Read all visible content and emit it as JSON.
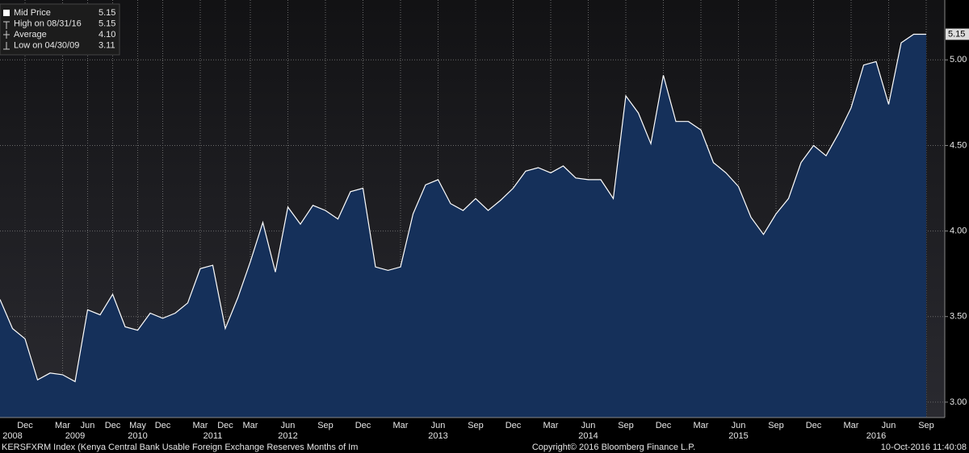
{
  "chart_data": {
    "type": "area",
    "series": [
      {
        "name": "Mid Price",
        "color": "#ffffff",
        "fill": "#15305a",
        "values": [
          3.6,
          3.43,
          3.37,
          3.13,
          3.17,
          3.16,
          3.12,
          3.54,
          3.51,
          3.63,
          3.44,
          3.42,
          3.52,
          3.49,
          3.52,
          3.58,
          3.78,
          3.8,
          3.43,
          3.61,
          3.82,
          4.05,
          3.76,
          4.14,
          4.04,
          4.15,
          4.12,
          4.07,
          4.23,
          4.25,
          3.79,
          3.77,
          3.79,
          4.1,
          4.27,
          4.3,
          4.16,
          4.12,
          4.19,
          4.12,
          4.18,
          4.25,
          4.35,
          4.37,
          4.34,
          4.38,
          4.31,
          4.3,
          4.3,
          4.19,
          4.79,
          4.69,
          4.51,
          4.91,
          4.64,
          4.64,
          4.59,
          4.4,
          4.34,
          4.26,
          4.08,
          3.98,
          4.1,
          4.19,
          4.4,
          4.5,
          4.44,
          4.57,
          4.72,
          4.97,
          4.99,
          4.74,
          5.1,
          5.15,
          5.15
        ]
      }
    ],
    "categories": [
      null,
      null,
      "Dec",
      null,
      null,
      "Mar",
      null,
      "Jun",
      null,
      "Dec",
      null,
      "May",
      null,
      "Dec",
      null,
      null,
      "Mar",
      null,
      "Dec",
      null,
      "Mar",
      null,
      null,
      "Jun",
      null,
      null,
      "Sep",
      null,
      null,
      "Dec",
      null,
      null,
      "Mar",
      null,
      null,
      "Jun",
      null,
      null,
      "Sep",
      null,
      null,
      "Dec",
      null,
      null,
      "Mar",
      null,
      null,
      "Jun",
      null,
      null,
      "Sep",
      null,
      null,
      "Dec",
      null,
      null,
      "Mar",
      null,
      null,
      "Jun",
      null,
      null,
      "Sep",
      null,
      null,
      "Dec",
      null,
      null,
      "Mar",
      null,
      null,
      "Jun",
      null,
      null,
      "Sep"
    ],
    "years": [
      null,
      "2008",
      null,
      null,
      null,
      null,
      "2009",
      null,
      null,
      null,
      null,
      "2010",
      null,
      null,
      null,
      null,
      null,
      "2011",
      null,
      null,
      null,
      null,
      null,
      "2012",
      null,
      null,
      null,
      null,
      null,
      null,
      null,
      null,
      null,
      null,
      null,
      "2013",
      null,
      null,
      null,
      null,
      null,
      null,
      null,
      null,
      null,
      null,
      null,
      "2014",
      null,
      null,
      null,
      null,
      null,
      null,
      null,
      null,
      null,
      null,
      null,
      "2015",
      null,
      null,
      null,
      null,
      null,
      null,
      null,
      null,
      null,
      null,
      "2016",
      null,
      null,
      null,
      null
    ],
    "ylim": [
      2.91,
      5.35
    ],
    "yticks": [
      {
        "value": 3,
        "label": "3.00"
      },
      {
        "value": 3.5,
        "label": "3.50"
      },
      {
        "value": 4,
        "label": "4.00"
      },
      {
        "value": 4.5,
        "label": "4.50"
      },
      {
        "value": 5,
        "label": "5.00"
      }
    ],
    "grid": true,
    "legend": [
      {
        "label": "Mid Price",
        "value": "5.15"
      },
      {
        "label": "High on 08/31/16",
        "value": "5.15"
      },
      {
        "label": "Average",
        "value": "4.10"
      },
      {
        "label": "Low on 04/30/09",
        "value": "3.11"
      }
    ],
    "footer_left": "KERSFXRM Index (Kenya Central Bank Usable Foreign Exchange Reserves Months of Im",
    "footer_center": "Copyright© 2016 Bloomberg Finance L.P.",
    "footer_right": "10-Oct-2016 11:40:08"
  }
}
